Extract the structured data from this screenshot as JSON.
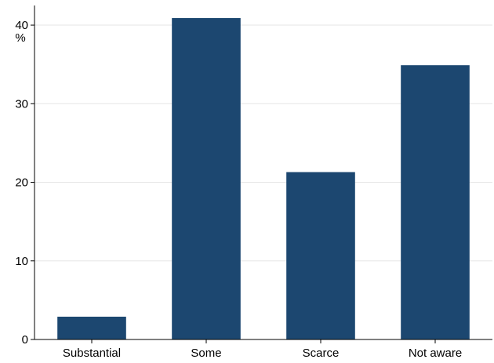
{
  "chart_data": {
    "type": "bar",
    "categories": [
      "Substantial",
      "Some",
      "Scarce",
      "Not aware"
    ],
    "values": [
      2.9,
      40.9,
      21.3,
      34.9
    ],
    "title": "",
    "xlabel": "",
    "ylabel": "%",
    "ylim": [
      0,
      42.5
    ],
    "yticks": [
      0,
      10,
      20,
      30,
      40
    ],
    "grid": true,
    "bar_color": "#1c4770",
    "grid_color": "#e6e6e6"
  }
}
